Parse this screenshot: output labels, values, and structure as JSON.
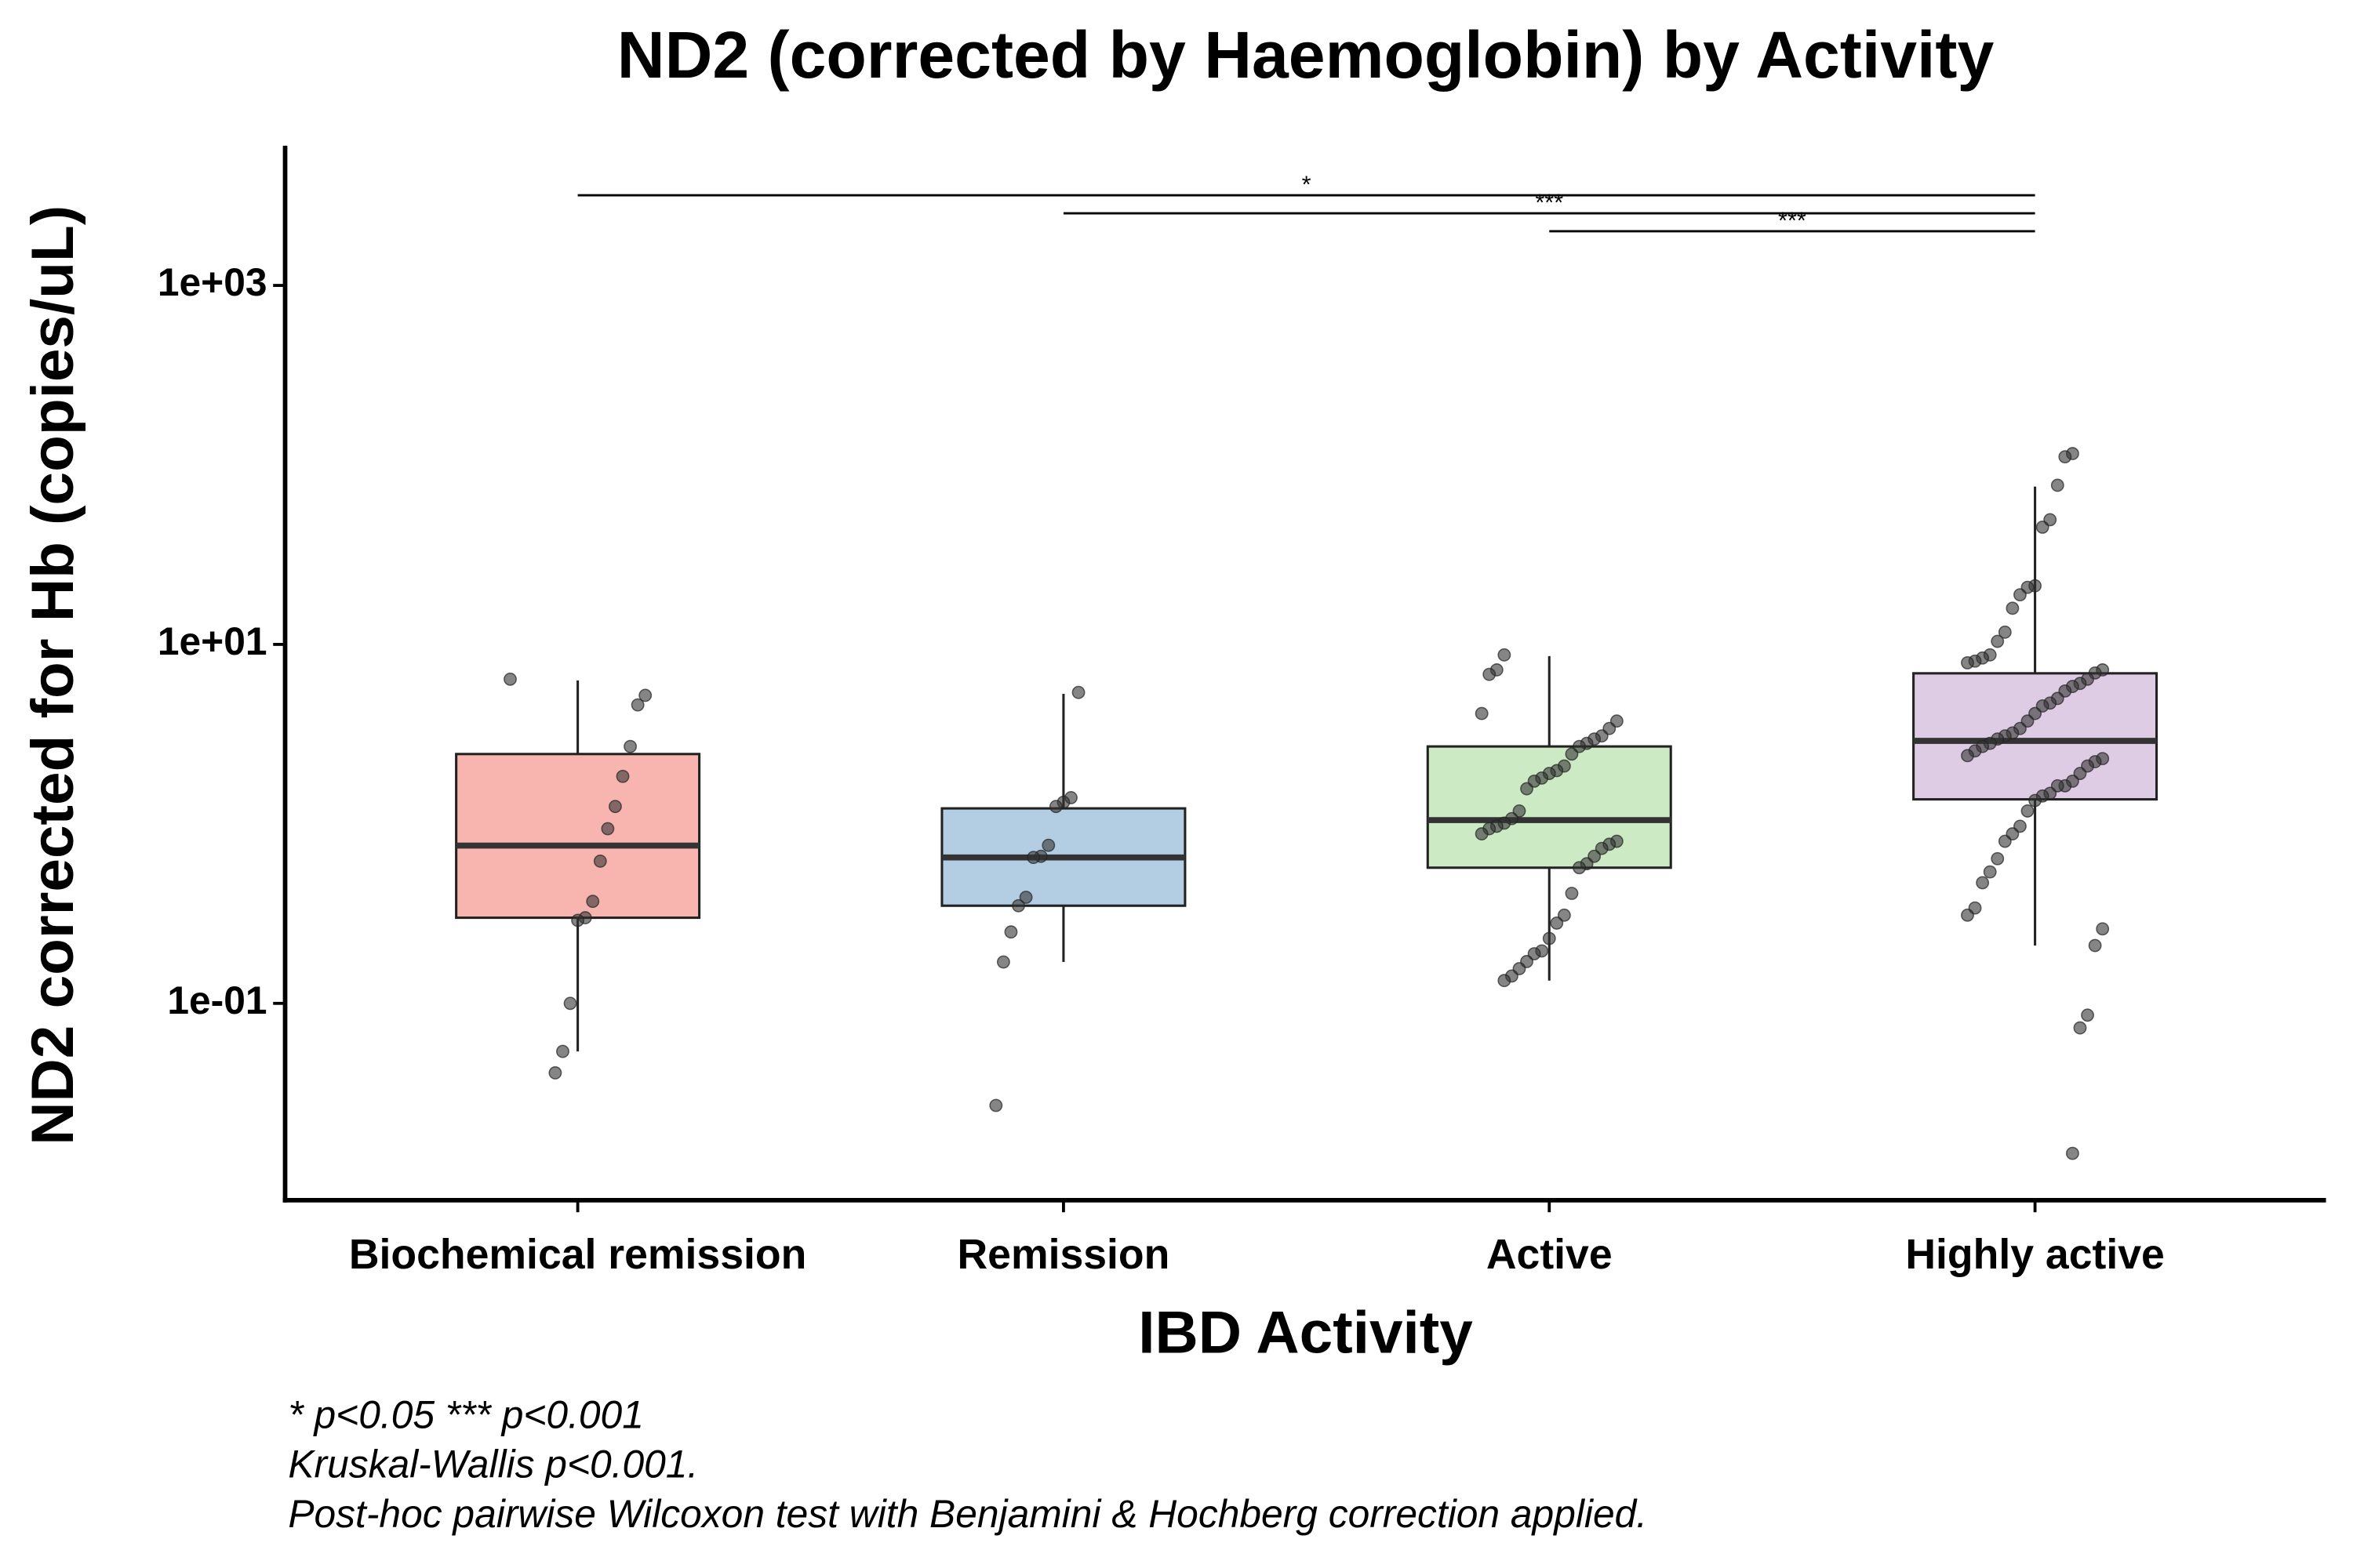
{
  "chart_data": {
    "type": "box",
    "title": "ND2 (corrected by Haemoglobin) by Activity",
    "xlabel": "IBD Activity",
    "ylabel": "ND2 corrected for Hb (copies/uL)",
    "log_y": true,
    "ylim": [
      0.008,
      6000
    ],
    "yticks": [
      {
        "value": 0.1,
        "label": "1e-01"
      },
      {
        "value": 10,
        "label": "1e+01"
      },
      {
        "value": 1000,
        "label": "1e+03"
      }
    ],
    "categories": [
      "Biochemical remission",
      "Remission",
      "Active",
      "Highly active"
    ],
    "colors": [
      "#f8b4ae",
      "#b3cde3",
      "#ccebc5",
      "#decbe4"
    ],
    "boxes": [
      {
        "whisker_low": 0.054,
        "q1": 0.3,
        "median": 0.757,
        "q3": 2.45,
        "whisker_high": 6.3,
        "points": [
          6.4,
          5.2,
          4.6,
          2.7,
          1.84,
          1.25,
          0.94,
          0.62,
          0.37,
          0.3,
          0.29,
          0.1,
          0.054,
          0.041
        ]
      },
      {
        "whisker_low": 0.17,
        "q1": 0.35,
        "median": 0.65,
        "q3": 1.22,
        "whisker_high": 5.3,
        "points": [
          5.4,
          1.4,
          1.32,
          1.25,
          0.76,
          0.66,
          0.65,
          0.39,
          0.35,
          0.25,
          0.17,
          0.027
        ]
      },
      {
        "whisker_low": 0.134,
        "q1": 0.57,
        "median": 1.05,
        "q3": 2.7,
        "whisker_high": 8.6,
        "points": [
          8.74,
          7.21,
          6.81,
          4.12,
          3.74,
          3.4,
          3.09,
          2.97,
          2.81,
          2.7,
          2.45,
          2.1,
          1.98,
          1.91,
          1.8,
          1.73,
          1.57,
          1.18,
          1.07,
          1.01,
          0.97,
          0.94,
          0.88,
          0.8,
          0.77,
          0.73,
          0.66,
          0.6,
          0.57,
          0.41,
          0.31,
          0.28,
          0.23,
          0.196,
          0.189,
          0.171,
          0.156,
          0.142,
          0.134
        ]
      },
      {
        "whisker_low": 0.21,
        "q1": 1.37,
        "median": 2.9,
        "q3": 6.9,
        "whisker_high": 75.7,
        "points": [
          115.6,
          111,
          77,
          49.5,
          45,
          21.2,
          20.8,
          18.9,
          15.9,
          11.7,
          10.4,
          8.74,
          8.4,
          8.07,
          7.9,
          7.21,
          6.93,
          6.4,
          6.06,
          5.83,
          5.5,
          5.0,
          4.71,
          4.54,
          4.12,
          3.74,
          3.4,
          3.21,
          3.09,
          2.97,
          2.81,
          2.7,
          2.55,
          2.4,
          2.31,
          2.22,
          2.1,
          1.91,
          1.73,
          1.63,
          1.63,
          1.48,
          1.43,
          1.35,
          1.18,
          0.97,
          0.88,
          0.8,
          0.64,
          0.54,
          0.47,
          0.34,
          0.31,
          0.26,
          0.21,
          0.086,
          0.073,
          0.0146
        ]
      }
    ],
    "comparisons": [
      {
        "groups": [
          0,
          3
        ],
        "label": "*"
      },
      {
        "groups": [
          1,
          3
        ],
        "label": "***"
      },
      {
        "groups": [
          2,
          3
        ],
        "label": "***"
      }
    ],
    "footnotes": [
      "* p<0.05 *** p<0.001",
      "Kruskal-Wallis p<0.001.",
      "Post-hoc pairwise Wilcoxon test with Benjamini & Hochberg correction applied."
    ]
  }
}
